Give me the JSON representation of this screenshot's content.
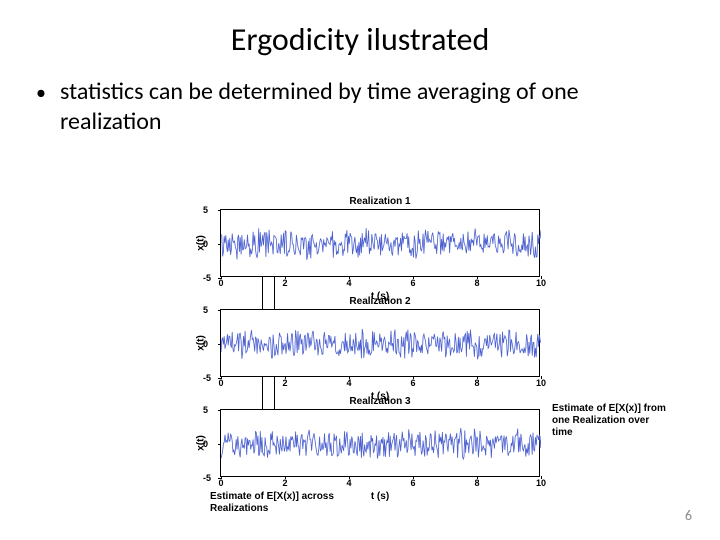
{
  "title": "Ergodicity ilustrated",
  "bullet": "statistics can be determined by time averaging of one realization",
  "page_number": "6",
  "chart": {
    "xlim": [
      0,
      10
    ],
    "ylim": [
      -5,
      5
    ],
    "xticks": [
      0,
      2,
      4,
      6,
      8,
      10
    ],
    "yticks": [
      -5,
      0,
      5
    ],
    "line_color": "#4a5fd0",
    "axis_color": "#000000",
    "vline_x1": 1.3,
    "vline_x2": 1.7,
    "subplots": [
      {
        "title": "Realization 1",
        "ylabel": "x(t)",
        "xlabel": "t (s)"
      },
      {
        "title": "Realization 2",
        "ylabel": "x(t)",
        "xlabel": "t (s)"
      },
      {
        "title": "Realization 3",
        "ylabel": "x(t)",
        "xlabel": "t (s)"
      }
    ]
  },
  "annotation_bottom": "Estimate of E[X(x)] across Realizations",
  "annotation_right": "Estimate of E[X(x)] from one Realization over time"
}
